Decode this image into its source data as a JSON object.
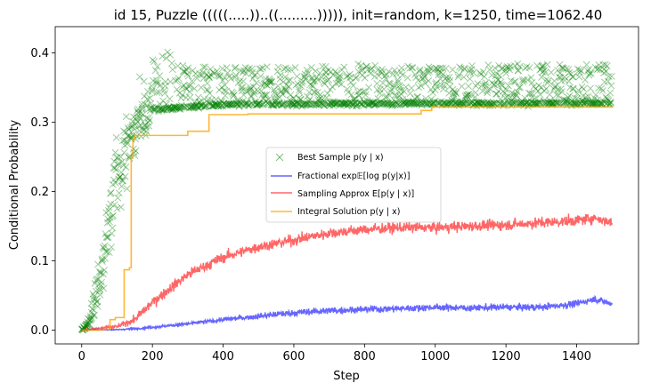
{
  "chart_data": {
    "type": "line",
    "title": "id 15, Puzzle (((((.....))..((.........))))), init=random, k=1250, time=1062.40",
    "xlabel": "Step",
    "ylabel": "Conditional Probability",
    "xlim": [
      -75,
      1575
    ],
    "ylim": [
      -0.02,
      0.438
    ],
    "xticks": [
      0,
      200,
      400,
      600,
      800,
      1000,
      1200,
      1400
    ],
    "yticks": [
      0.0,
      0.1,
      0.2,
      0.3,
      0.4
    ],
    "grid": false,
    "legend_position": "center-right",
    "series": [
      {
        "name": "Best Sample p(y | x)",
        "kind": "scatter",
        "marker": "x",
        "color": "#008000",
        "alpha": 0.4,
        "n_points": 1500,
        "envelope": {
          "x": [
            0,
            20,
            40,
            60,
            80,
            100,
            120,
            140,
            160,
            180,
            200,
            250,
            300,
            400,
            600,
            800,
            1000,
            1200,
            1400,
            1500
          ],
          "center": [
            0.0,
            0.01,
            0.05,
            0.11,
            0.17,
            0.22,
            0.25,
            0.28,
            0.3,
            0.31,
            0.318,
            0.32,
            0.322,
            0.325,
            0.326,
            0.327,
            0.327,
            0.327,
            0.328,
            0.328
          ],
          "upper": [
            0.005,
            0.03,
            0.11,
            0.2,
            0.28,
            0.33,
            0.36,
            0.37,
            0.38,
            0.39,
            0.415,
            0.4,
            0.38,
            0.38,
            0.38,
            0.385,
            0.38,
            0.385,
            0.385,
            0.385
          ]
        }
      },
      {
        "name": "Fractional exp𝔼[log p(y|x)]",
        "kind": "line",
        "color": "#0000ff",
        "alpha": 0.6,
        "x": [
          0,
          100,
          150,
          200,
          300,
          400,
          500,
          600,
          700,
          800,
          900,
          1000,
          1100,
          1200,
          1300,
          1400,
          1450,
          1500
        ],
        "y": [
          0.0,
          0.0005,
          0.002,
          0.004,
          0.009,
          0.015,
          0.02,
          0.025,
          0.028,
          0.03,
          0.031,
          0.033,
          0.032,
          0.033,
          0.033,
          0.038,
          0.045,
          0.038
        ],
        "noise": 0.005
      },
      {
        "name": "Sampling Approx E[p(y | x)]",
        "kind": "line",
        "color": "#ff0000",
        "alpha": 0.6,
        "x": [
          0,
          100,
          150,
          200,
          300,
          400,
          500,
          600,
          700,
          800,
          900,
          1000,
          1100,
          1200,
          1300,
          1400,
          1450,
          1500
        ],
        "y": [
          0.0,
          0.005,
          0.015,
          0.04,
          0.08,
          0.105,
          0.12,
          0.13,
          0.14,
          0.145,
          0.148,
          0.148,
          0.15,
          0.152,
          0.155,
          0.158,
          0.162,
          0.155
        ],
        "noise": 0.008
      },
      {
        "name": "Integral Solution p(y | x)",
        "kind": "step",
        "color": "#ffa500",
        "alpha": 0.8,
        "x": [
          0,
          60,
          80,
          95,
          120,
          135,
          140,
          145,
          150,
          210,
          300,
          360,
          470,
          960,
          990,
          1500
        ],
        "y": [
          0.0,
          0.001,
          0.015,
          0.018,
          0.087,
          0.09,
          0.25,
          0.275,
          0.281,
          0.281,
          0.287,
          0.311,
          0.312,
          0.317,
          0.322,
          0.323
        ]
      }
    ]
  },
  "legend": {
    "items": [
      {
        "id": "best",
        "label": "Best Sample p(y | x)"
      },
      {
        "id": "fractional",
        "label": "Fractional exp𝔼[log p(y|x)]"
      },
      {
        "id": "sampling",
        "label": "Sampling Approx E[p(y | x)]"
      },
      {
        "id": "integral",
        "label": "Integral Solution p(y | x)"
      }
    ]
  }
}
